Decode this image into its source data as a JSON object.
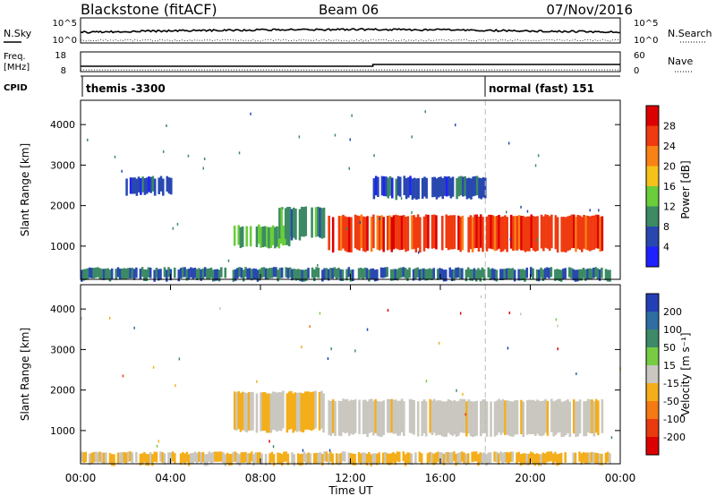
{
  "header": {
    "station": "Blackstone (fitACF)",
    "beam": "Beam 06",
    "date": "07/Nov/2016"
  },
  "noise_panel": {
    "left_label": "N.Sky",
    "left_ticks": [
      "10^5",
      "10^0"
    ],
    "right_label": "N.Search",
    "right_ticks": [
      "10^5",
      "10^0"
    ]
  },
  "freq_panel": {
    "left_label_line1": "Freq.",
    "left_label_line2": "[MHz]",
    "left_ticks": [
      "18",
      "8"
    ],
    "right_label": "Nave",
    "right_ticks": [
      "60",
      "0"
    ]
  },
  "cpid_panel": {
    "label": "CPID",
    "segments": [
      {
        "start_ut": "00:00",
        "text": "themis -3300"
      },
      {
        "start_ut": "18:00",
        "text": "normal (fast) 151"
      }
    ]
  },
  "x_axis": {
    "label": "Time UT",
    "ticks": [
      "00:00",
      "04:00",
      "08:00",
      "12:00",
      "16:00",
      "20:00",
      "00:00"
    ]
  },
  "power_colorbar": {
    "label": "Power [dB]",
    "ticks": [
      "4",
      "8",
      "12",
      "16",
      "20",
      "24",
      "28"
    ],
    "colors": [
      "#2020ff",
      "#2848b0",
      "#3c8a64",
      "#6acd3c",
      "#f5c21b",
      "#f98216",
      "#f03a10",
      "#dd0000"
    ]
  },
  "velocity_colorbar": {
    "label": "Velocity [m s⁻¹]",
    "ticks": [
      "200",
      "100",
      "50",
      "15",
      "-15",
      "-50",
      "-100",
      "-200"
    ],
    "colors": [
      "#233fb5",
      "#2e6ea2",
      "#3d8a68",
      "#77cc44",
      "#c9c7bf",
      "#f4ae1a",
      "#f57a14",
      "#ea3a10",
      "#dd0000"
    ]
  },
  "chart_data": [
    {
      "type": "heatmap",
      "title": "Power",
      "ylabel": "Slant Range [km]",
      "xlabel": "Time UT",
      "x_range_hours": [
        0,
        24
      ],
      "ylim": [
        180,
        4600
      ],
      "yticks": [
        1000,
        2000,
        3000,
        4000
      ],
      "colorbar_label": "Power [dB]",
      "clim": [
        0,
        32
      ],
      "regions": [
        {
          "name": "ground/near-range scatter",
          "t0": 0.0,
          "t1": 23.5,
          "r0": 180,
          "r1": 450,
          "value": 8
        },
        {
          "name": "patch",
          "t0": 6.8,
          "t1": 9.3,
          "r0": 1000,
          "r1": 1500,
          "value": 12
        },
        {
          "name": "patch",
          "t0": 8.8,
          "t1": 10.8,
          "r0": 1200,
          "r1": 1950,
          "value": 10
        },
        {
          "name": "main band",
          "t0": 11.0,
          "t1": 23.2,
          "r0": 900,
          "r1": 1750,
          "value": 26
        },
        {
          "name": "upper trail",
          "t0": 2.0,
          "t1": 4.0,
          "r0": 2300,
          "r1": 2700,
          "value": 6
        },
        {
          "name": "upper trail",
          "t0": 13.0,
          "t1": 18.0,
          "r0": 2200,
          "r1": 2700,
          "value": 6
        }
      ]
    },
    {
      "type": "heatmap",
      "title": "Velocity",
      "ylabel": "Slant Range [km]",
      "xlabel": "Time UT",
      "x_range_hours": [
        0,
        24
      ],
      "ylim": [
        180,
        4600
      ],
      "yticks": [
        1000,
        2000,
        3000,
        4000
      ],
      "colorbar_label": "Velocity [m s⁻¹]",
      "clim": [
        -250,
        250
      ],
      "regions": [
        {
          "name": "near-range",
          "t0": 0.0,
          "t1": 23.5,
          "r0": 180,
          "r1": 450,
          "value": -60
        },
        {
          "name": "patch",
          "t0": 6.8,
          "t1": 10.8,
          "r0": 1000,
          "r1": 1950,
          "value": -60
        },
        {
          "name": "main band",
          "t0": 11.0,
          "t1": 23.2,
          "r0": 900,
          "r1": 1750,
          "value": 0
        }
      ]
    }
  ]
}
